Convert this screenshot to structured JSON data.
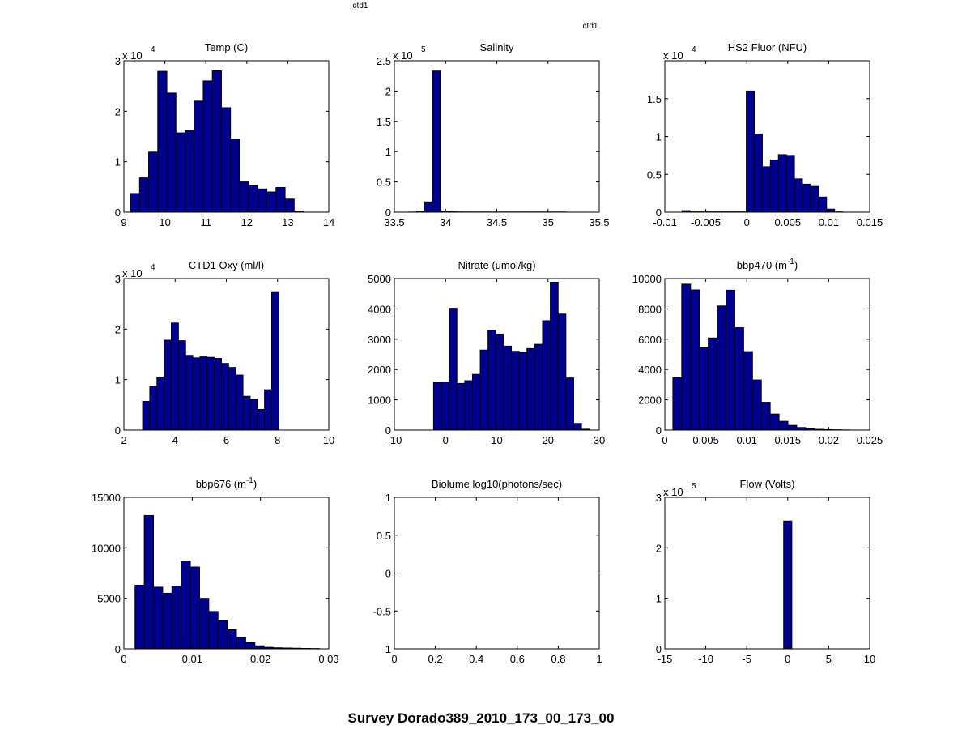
{
  "figure": {
    "label_top": "ctd1",
    "label_right": "ctd1",
    "suptitle": "Survey Dorado389_2010_173_00_173_00",
    "bar_color": "#00008F"
  },
  "chart_data": [
    {
      "type": "bar",
      "title": "Temp (C)",
      "xlim": [
        9,
        14
      ],
      "ylim": [
        0,
        3
      ],
      "xticks": [
        9,
        10,
        11,
        12,
        13,
        14
      ],
      "xticklabels": [
        "9",
        "10",
        "11",
        "12",
        "13",
        "14"
      ],
      "yticks": [
        0,
        1,
        2,
        3
      ],
      "yticklabels": [
        "0",
        "1",
        "2",
        "3"
      ],
      "exponent": "4",
      "bin_start": 9.16,
      "bin_width": 0.222,
      "values": [
        0.37,
        0.68,
        1.19,
        2.79,
        2.36,
        1.57,
        1.62,
        2.2,
        2.6,
        2.8,
        2.07,
        1.45,
        0.6,
        0.53,
        0.46,
        0.4,
        0.49,
        0.26,
        0.02
      ]
    },
    {
      "type": "bar",
      "title": "Salinity",
      "xlim": [
        33.5,
        35.5
      ],
      "ylim": [
        0,
        2.5
      ],
      "xticks": [
        33.5,
        34,
        34.5,
        35,
        35.5
      ],
      "xticklabels": [
        "33.5",
        "34",
        "34.5",
        "35",
        "35.5"
      ],
      "yticks": [
        0,
        0.5,
        1,
        1.5,
        2,
        2.5
      ],
      "yticklabels": [
        "0",
        "0.5",
        "1",
        "1.5",
        "2",
        "2.5"
      ],
      "exponent": "5",
      "bin_start": 33.64,
      "bin_width": 0.077,
      "values": [
        0.002,
        0.02,
        0.17,
        2.33,
        0.02,
        0.006,
        0.004,
        0.003,
        0.003,
        0.003,
        0.003,
        0.003,
        0.003,
        0.003,
        0.003,
        0.003,
        0.003,
        0.003,
        0.003,
        0.003
      ]
    },
    {
      "type": "bar",
      "title": "HS2 Fluor (NFU)",
      "xlim": [
        -0.01,
        0.015
      ],
      "ylim": [
        0,
        2
      ],
      "xticks": [
        -0.01,
        -0.005,
        0,
        0.005,
        0.01,
        0.015
      ],
      "xticklabels": [
        "-0.01",
        "-0.005",
        "0",
        "0.005",
        "0.01",
        "0.015"
      ],
      "yticks": [
        0,
        0.5,
        1,
        1.5
      ],
      "yticklabels": [
        "0",
        "0.5",
        "1",
        "1.5"
      ],
      "exponent": "4",
      "bin_start": -0.0079,
      "bin_width": 0.00098,
      "values": [
        0.02,
        0.004,
        0.004,
        0.004,
        0.004,
        0.004,
        0.004,
        0.004,
        1.6,
        1.03,
        0.6,
        0.69,
        0.76,
        0.75,
        0.44,
        0.37,
        0.34,
        0.2,
        0.04,
        0.004
      ]
    },
    {
      "type": "bar",
      "title": "CTD1 Oxy (ml/l)",
      "xlim": [
        2,
        10
      ],
      "ylim": [
        0,
        3
      ],
      "xticks": [
        2,
        4,
        6,
        8,
        10
      ],
      "xticklabels": [
        "2",
        "4",
        "6",
        "8",
        "10"
      ],
      "yticks": [
        0,
        1,
        2,
        3
      ],
      "yticklabels": [
        "0",
        "1",
        "2",
        "3"
      ],
      "exponent": "4",
      "bin_start": 2.73,
      "bin_width": 0.28,
      "values": [
        0.57,
        0.87,
        1.05,
        1.78,
        2.12,
        1.77,
        1.48,
        1.43,
        1.45,
        1.44,
        1.42,
        1.32,
        1.24,
        1.09,
        0.67,
        0.61,
        0.41,
        0.8,
        2.74
      ]
    },
    {
      "type": "bar",
      "title": "Nitrate (umol/kg)",
      "xlim": [
        -10,
        30
      ],
      "ylim": [
        0,
        5000
      ],
      "xticks": [
        -10,
        0,
        10,
        20,
        30
      ],
      "xticklabels": [
        "-10",
        "0",
        "10",
        "20",
        "30"
      ],
      "yticks": [
        0,
        1000,
        2000,
        3000,
        4000,
        5000
      ],
      "yticklabels": [
        "0",
        "1000",
        "2000",
        "3000",
        "4000",
        "5000"
      ],
      "exponent": "",
      "bin_start": -2.35,
      "bin_width": 1.52,
      "values": [
        1570,
        1590,
        4020,
        1540,
        1630,
        1840,
        2640,
        3290,
        3170,
        2770,
        2600,
        2560,
        2690,
        2830,
        3610,
        4880,
        3830,
        1720,
        220,
        30
      ]
    },
    {
      "type": "bar",
      "title": "bbp470 (m",
      "title_sup": "-1",
      "title_end": ")",
      "xlim": [
        0,
        0.025
      ],
      "ylim": [
        0,
        10000
      ],
      "xticks": [
        0,
        0.005,
        0.01,
        0.015,
        0.02,
        0.025
      ],
      "xticklabels": [
        "0",
        "0.005",
        "0.01",
        "0.015",
        "0.02",
        "0.025"
      ],
      "yticks": [
        0,
        2000,
        4000,
        6000,
        8000,
        10000
      ],
      "yticklabels": [
        "0",
        "2000",
        "4000",
        "6000",
        "8000",
        "10000"
      ],
      "exponent": "",
      "bin_start": 0.00098,
      "bin_width": 0.00108,
      "values": [
        3470,
        9630,
        9250,
        5430,
        6080,
        8190,
        9230,
        6760,
        5180,
        3310,
        1840,
        1060,
        580,
        310,
        170,
        90,
        50,
        30,
        20,
        10
      ]
    },
    {
      "type": "bar",
      "title": "bbp676 (m",
      "title_sup": "-1",
      "title_end": ")",
      "xlim": [
        0,
        0.03
      ],
      "ylim": [
        0,
        15000
      ],
      "xticks": [
        0,
        0.01,
        0.02,
        0.03
      ],
      "xticklabels": [
        "0",
        "0.01",
        "0.02",
        "0.03"
      ],
      "yticks": [
        0,
        5000,
        10000,
        15000
      ],
      "yticklabels": [
        "0",
        "5000",
        "10000",
        "15000"
      ],
      "exponent": "",
      "bin_start": 0.00163,
      "bin_width": 0.00135,
      "values": [
        6300,
        13200,
        6100,
        5500,
        6200,
        8700,
        8100,
        5000,
        3700,
        2800,
        1900,
        1100,
        600,
        300,
        150,
        100,
        80,
        60,
        40,
        30
      ]
    },
    {
      "type": "bar",
      "title": "Biolume log10(photons/sec)",
      "xlim": [
        0,
        1
      ],
      "ylim": [
        -1,
        1
      ],
      "xticks": [
        0,
        0.2,
        0.4,
        0.6,
        0.8,
        1
      ],
      "xticklabels": [
        "0",
        "0.2",
        "0.4",
        "0.6",
        "0.8",
        "1"
      ],
      "yticks": [
        -1,
        -0.5,
        0,
        0.5,
        1
      ],
      "yticklabels": [
        "-1",
        "-0.5",
        "0",
        "0.5",
        "1"
      ],
      "exponent": "",
      "bin_start": 0,
      "bin_width": 0.05,
      "values": []
    },
    {
      "type": "bar",
      "title": "Flow (Volts)",
      "xlim": [
        -15,
        10
      ],
      "ylim": [
        0,
        3
      ],
      "xticks": [
        -15,
        -10,
        -5,
        0,
        5,
        10
      ],
      "xticklabels": [
        "-15",
        "-10",
        "-5",
        "0",
        "5",
        "10"
      ],
      "yticks": [
        0,
        1,
        2,
        3
      ],
      "yticklabels": [
        "0",
        "1",
        "2",
        "3"
      ],
      "exponent": "5",
      "bin_start": -0.5,
      "bin_width": 1.0,
      "values": [
        2.53
      ]
    }
  ]
}
